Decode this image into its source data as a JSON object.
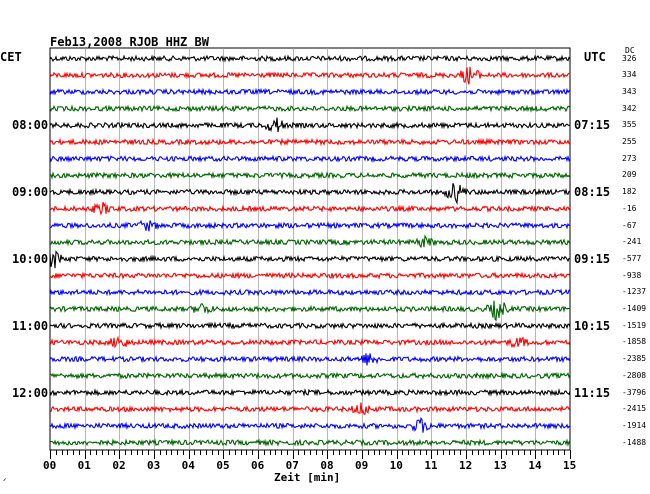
{
  "header": {
    "title": "Feb13,2008   RJOB HHZ BW",
    "left_tz": "CET",
    "right_tz": "UTC",
    "dc_header": "DC"
  },
  "left_times": [
    "08:00",
    "09:00",
    "10:00",
    "11:00",
    "12:00"
  ],
  "right_times": [
    "07:15",
    "08:15",
    "09:15",
    "10:15",
    "11:15"
  ],
  "dc_values": [
    "326",
    "334",
    "343",
    "342",
    "355",
    "255",
    "273",
    "209",
    "182",
    "-16",
    "-67",
    "-241",
    "-577",
    "-938",
    "-1237",
    "-1409",
    "-1519",
    "-1858",
    "-2385",
    "-2808",
    "-3796",
    "-2415",
    "-1914",
    "-1488"
  ],
  "x_axis": {
    "ticks": [
      "00",
      "01",
      "02",
      "03",
      "04",
      "05",
      "06",
      "07",
      "08",
      "09",
      "10",
      "11",
      "12",
      "13",
      "14",
      "15"
    ],
    "label": "Zeit [min]"
  },
  "corner_mark": "ᐟ",
  "colors": {
    "trace_cycle": [
      "#000000",
      "#ff0000",
      "#0000ff",
      "#006400"
    ],
    "grid": "#000000",
    "background": "#ffffff"
  },
  "chart_data": {
    "type": "line",
    "title": "Feb13,2008   RJOB HHZ BW",
    "xlabel": "Zeit [min]",
    "xlim": [
      0,
      15
    ],
    "trace_count": 24,
    "trace_interval_min": 15,
    "events": [
      {
        "trace": 1,
        "minute": 12.1,
        "amplitude": 0.6
      },
      {
        "trace": 4,
        "minute": 6.5,
        "amplitude": 0.5
      },
      {
        "trace": 8,
        "minute": 11.7,
        "amplitude": 0.7
      },
      {
        "trace": 9,
        "minute": 1.5,
        "amplitude": 0.35
      },
      {
        "trace": 10,
        "minute": 2.8,
        "amplitude": 0.3
      },
      {
        "trace": 11,
        "minute": 10.8,
        "amplitude": 0.3
      },
      {
        "trace": 12,
        "minute": 0.1,
        "amplitude": 0.6
      },
      {
        "trace": 15,
        "minute": 4.4,
        "amplitude": 0.35
      },
      {
        "trace": 15,
        "minute": 12.9,
        "amplitude": 0.7
      },
      {
        "trace": 17,
        "minute": 2.0,
        "amplitude": 0.4
      },
      {
        "trace": 17,
        "minute": 13.5,
        "amplitude": 0.3
      },
      {
        "trace": 18,
        "minute": 9.2,
        "amplitude": 0.4
      },
      {
        "trace": 21,
        "minute": 9.0,
        "amplitude": 0.4
      },
      {
        "trace": 22,
        "minute": 10.7,
        "amplitude": 0.45
      }
    ]
  }
}
